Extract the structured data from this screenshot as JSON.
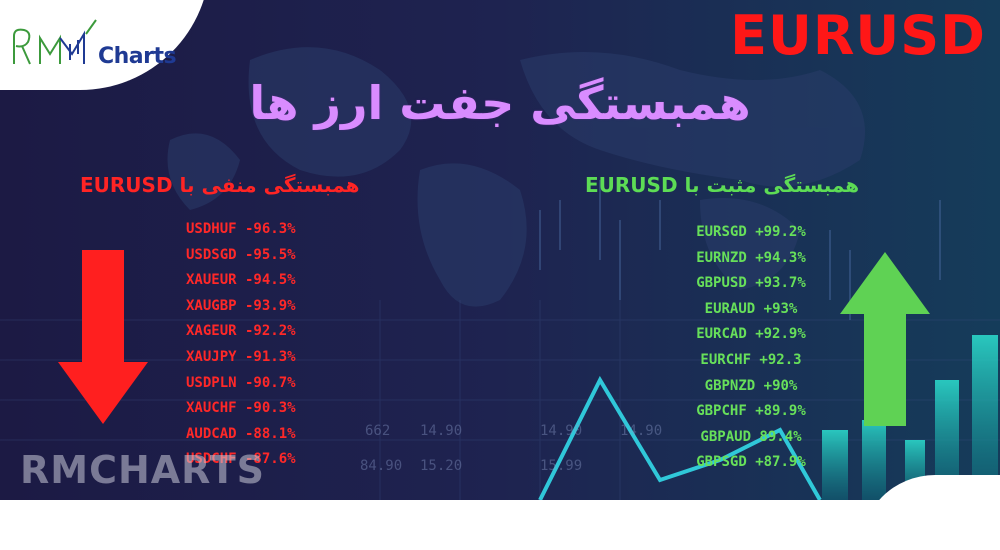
{
  "brand": {
    "logo_text": "Charts",
    "watermark": "RMCHARTS"
  },
  "header": {
    "symbol": "EURUSD",
    "title": "همبستگی جفت ارز ها"
  },
  "negative": {
    "heading": "همبستگی منفی با EURUSD",
    "items": [
      "USDHUF -96.3%",
      "USDSGD -95.5%",
      "XAUEUR -94.5%",
      "XAUGBP -93.9%",
      "XAGEUR -92.2%",
      "XAUJPY -91.3%",
      "USDPLN -90.7%",
      "XAUCHF -90.3%",
      "AUDCAD -88.1%",
      "USDCHF -87.6%"
    ]
  },
  "positive": {
    "heading": "همبستگی مثبت با EURUSD",
    "items": [
      "EURSGD +99.2%",
      "EURNZD +94.3%",
      "GBPUSD +93.7%",
      "EURAUD +93%",
      "EURCAD +92.9%",
      "EURCHF +92.3",
      "GBPNZD +90%",
      "GBPCHF +89.9%",
      "GBPAUD 89.4%",
      "GBPSGD +87.9%"
    ]
  },
  "background_numbers": [
    "662",
    "14.90",
    "14.90",
    "14.90",
    "84.90",
    "15.20",
    "15.99"
  ],
  "colors": {
    "negative": "#ff2424",
    "positive": "#5ddc55",
    "title": "#d98cff",
    "symbol": "#ff1717",
    "background": "#1a1d46"
  },
  "icons": {
    "down_arrow": "arrow-down-icon",
    "up_arrow": "arrow-up-icon"
  }
}
